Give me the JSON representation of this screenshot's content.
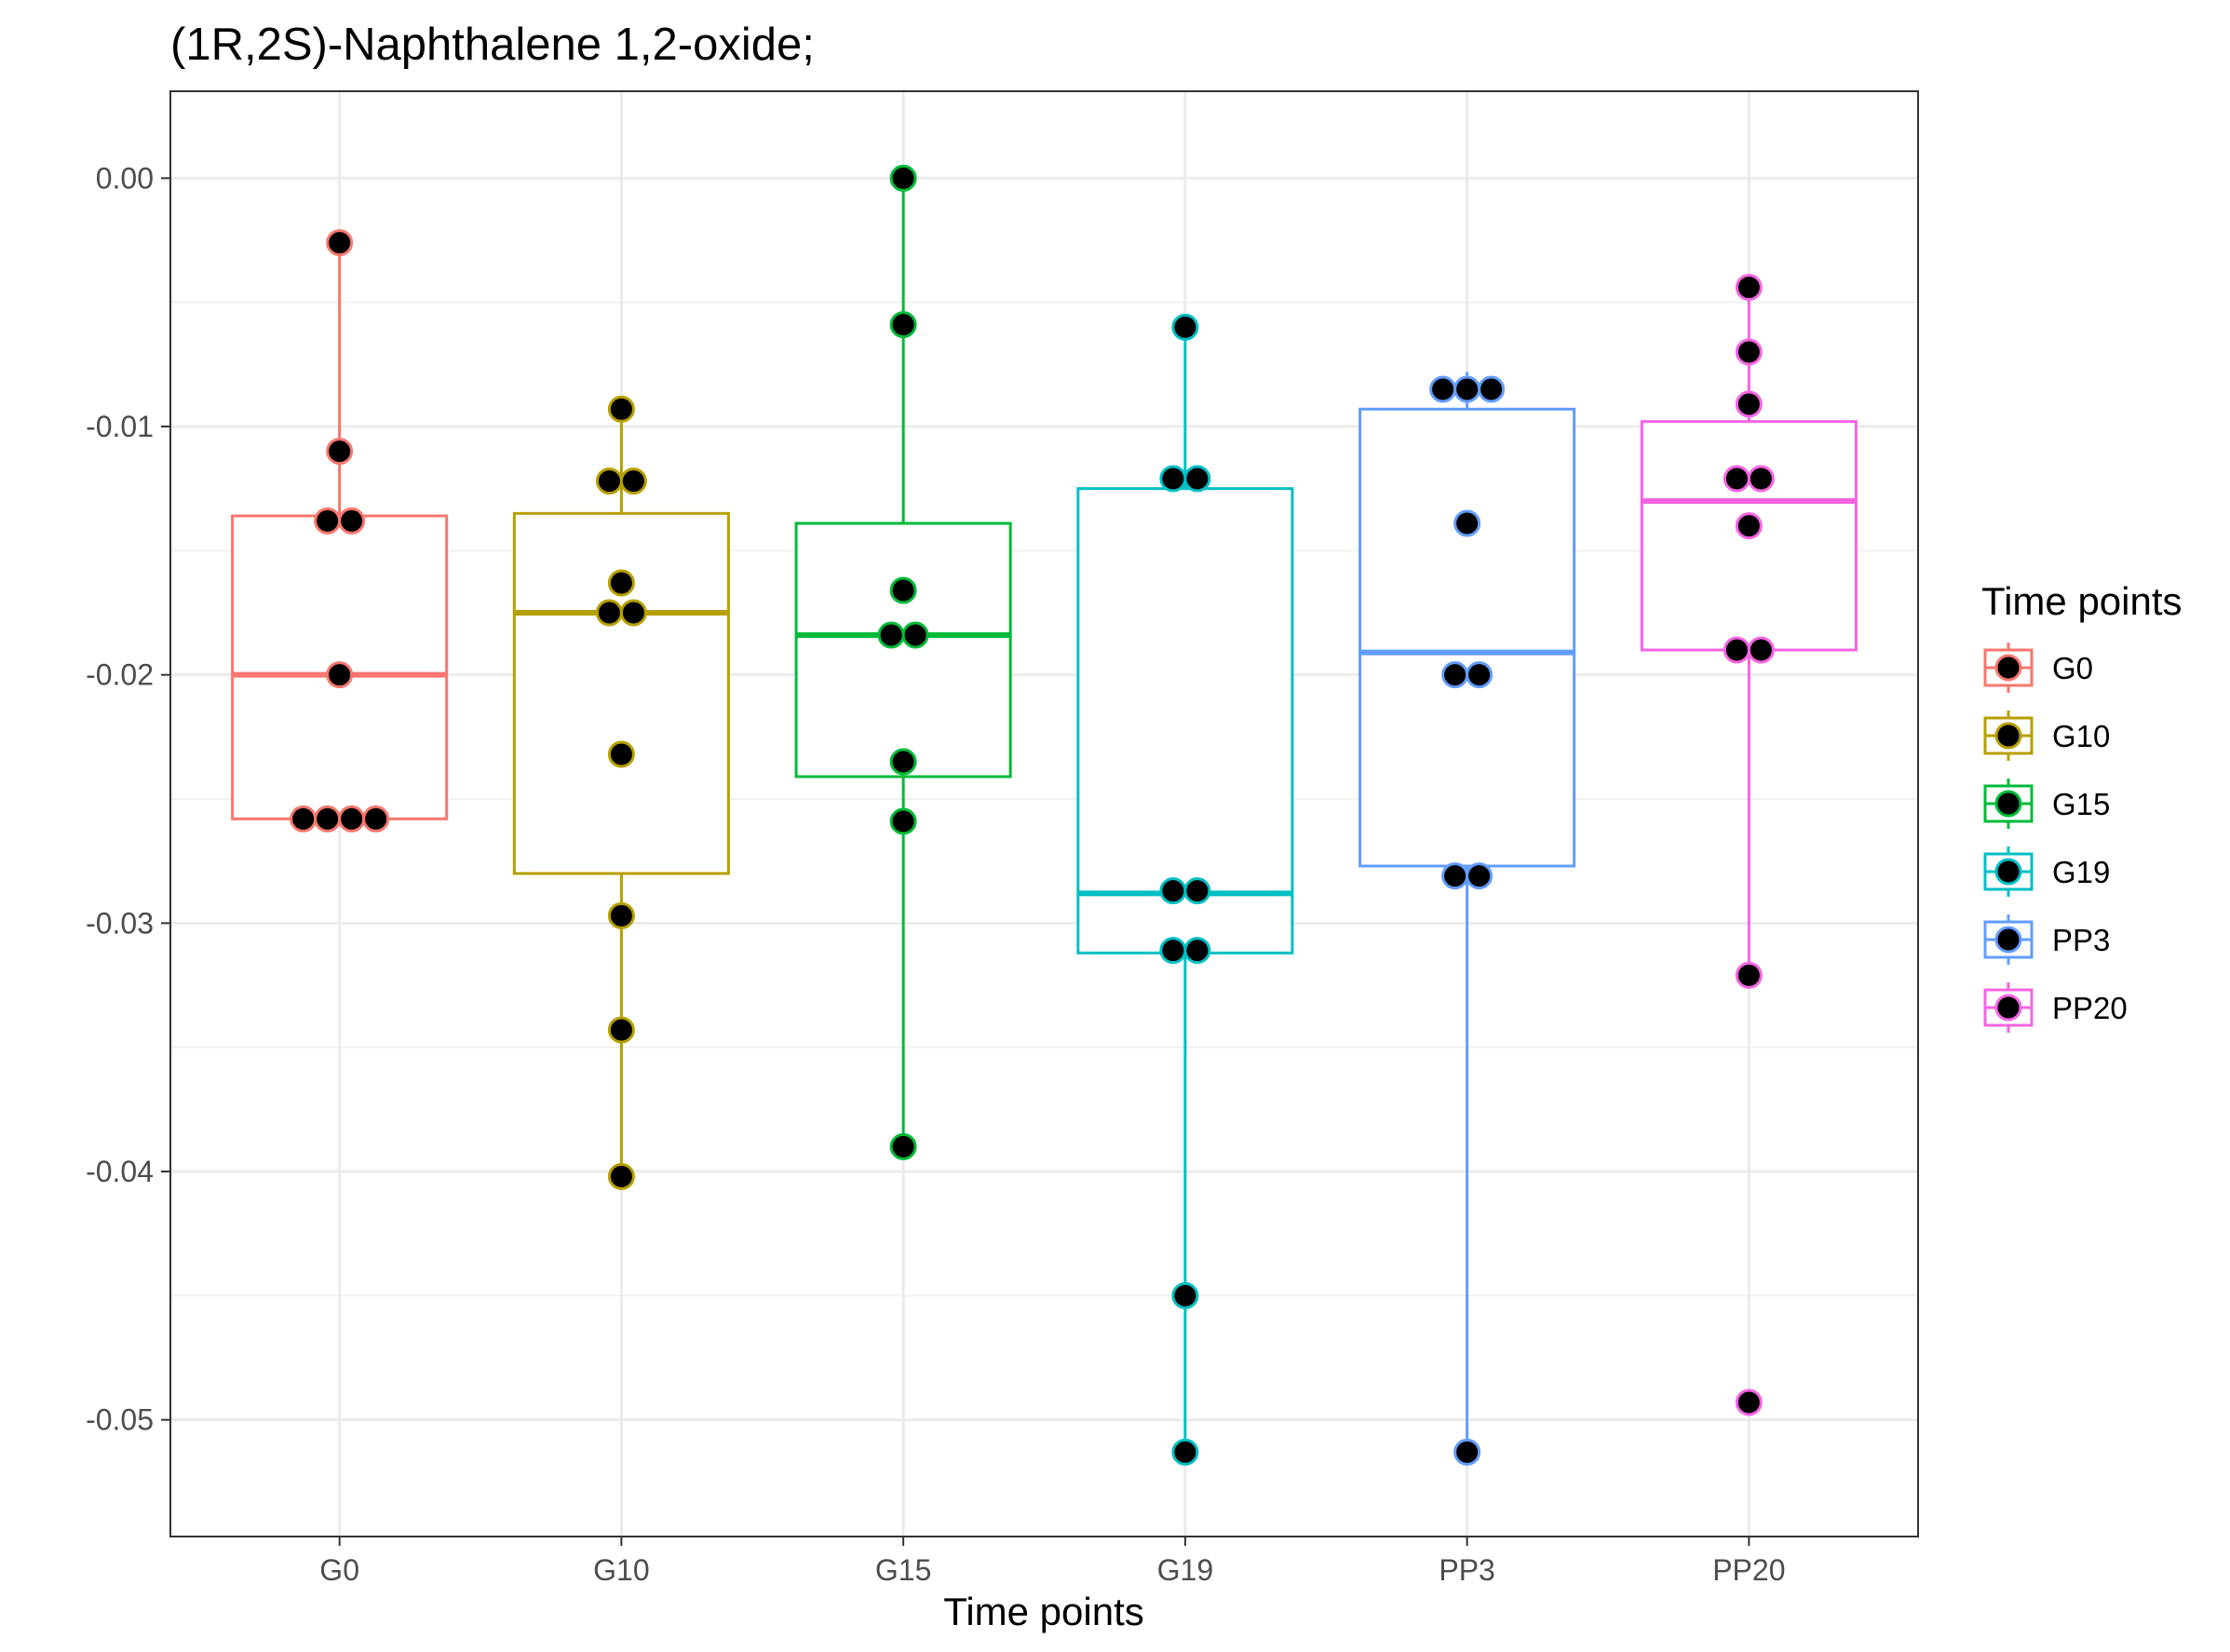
{
  "chart_data": {
    "type": "boxplot",
    "title": "(1R,2S)-Naphthalene 1,2-oxide;",
    "xlabel": "Time points",
    "ylabel": "",
    "categories": [
      "G0",
      "G10",
      "G15",
      "G19",
      "PP3",
      "PP20"
    ],
    "ylim": [
      -0.0547,
      0.0035
    ],
    "yticks": [
      0.0,
      -0.01,
      -0.02,
      -0.03,
      -0.04,
      -0.05
    ],
    "ytick_labels": [
      "0.00",
      "-0.01",
      "-0.02",
      "-0.03",
      "-0.04",
      "-0.05"
    ],
    "grid": true,
    "legend": {
      "title": "Time points",
      "position": "right",
      "entries": [
        "G0",
        "G10",
        "G15",
        "G19",
        "PP3",
        "PP20"
      ]
    },
    "series": [
      {
        "name": "G0",
        "color": "#F8766D",
        "box": {
          "whisker_low": -0.0258,
          "q1": -0.0258,
          "median": -0.02,
          "q3": -0.0136,
          "whisker_high": -0.0026
        },
        "points": [
          {
            "dx": 0,
            "y": -0.0026
          },
          {
            "dx": 0,
            "y": -0.011
          },
          {
            "dx": -0.5,
            "y": -0.0138
          },
          {
            "dx": 0.5,
            "y": -0.0138
          },
          {
            "dx": 0,
            "y": -0.02
          },
          {
            "dx": -1.5,
            "y": -0.0258
          },
          {
            "dx": -0.5,
            "y": -0.0258
          },
          {
            "dx": 0.5,
            "y": -0.0258
          },
          {
            "dx": 1.5,
            "y": -0.0258
          }
        ]
      },
      {
        "name": "G10",
        "color": "#B79F00",
        "box": {
          "whisker_low": -0.0402,
          "q1": -0.028,
          "median": -0.0175,
          "q3": -0.0135,
          "whisker_high": -0.0093
        },
        "points": [
          {
            "dx": 0,
            "y": -0.0093
          },
          {
            "dx": -0.5,
            "y": -0.0122
          },
          {
            "dx": 0.5,
            "y": -0.0122
          },
          {
            "dx": 0,
            "y": -0.0163
          },
          {
            "dx": -0.5,
            "y": -0.0175
          },
          {
            "dx": 0.5,
            "y": -0.0175
          },
          {
            "dx": 0,
            "y": -0.0232
          },
          {
            "dx": 0,
            "y": -0.0297
          },
          {
            "dx": 0,
            "y": -0.0343
          },
          {
            "dx": 0,
            "y": -0.0402
          }
        ]
      },
      {
        "name": "G15",
        "color": "#00BA38",
        "box": {
          "whisker_low": -0.039,
          "q1": -0.0241,
          "median": -0.0184,
          "q3": -0.0139,
          "whisker_high": 0.0
        },
        "points": [
          {
            "dx": 0,
            "y": 0.0
          },
          {
            "dx": 0,
            "y": -0.0059
          },
          {
            "dx": 0,
            "y": -0.0166
          },
          {
            "dx": -0.5,
            "y": -0.0184
          },
          {
            "dx": 0.5,
            "y": -0.0184
          },
          {
            "dx": 0,
            "y": -0.0235
          },
          {
            "dx": 0,
            "y": -0.0259
          },
          {
            "dx": 0,
            "y": -0.039
          }
        ]
      },
      {
        "name": "G19",
        "color": "#00BFC4",
        "box": {
          "whisker_low": -0.0513,
          "q1": -0.0312,
          "median": -0.0288,
          "q3": -0.0125,
          "whisker_high": -0.006
        },
        "points": [
          {
            "dx": 0,
            "y": -0.006
          },
          {
            "dx": -0.5,
            "y": -0.0121
          },
          {
            "dx": 0.5,
            "y": -0.0121
          },
          {
            "dx": -0.5,
            "y": -0.0287
          },
          {
            "dx": 0.5,
            "y": -0.0287
          },
          {
            "dx": -0.5,
            "y": -0.0311
          },
          {
            "dx": 0.5,
            "y": -0.0311
          },
          {
            "dx": 0,
            "y": -0.045
          },
          {
            "dx": 0,
            "y": -0.0513
          }
        ]
      },
      {
        "name": "PP3",
        "color": "#619CFF",
        "box": {
          "whisker_low": -0.0513,
          "q1": -0.0277,
          "median": -0.0191,
          "q3": -0.0093,
          "whisker_high": -0.0078
        },
        "points": [
          {
            "dx": -1,
            "y": -0.0085
          },
          {
            "dx": 0,
            "y": -0.0085
          },
          {
            "dx": 1,
            "y": -0.0085
          },
          {
            "dx": 0,
            "y": -0.0139
          },
          {
            "dx": -0.5,
            "y": -0.02
          },
          {
            "dx": 0.5,
            "y": -0.02
          },
          {
            "dx": -0.5,
            "y": -0.0281
          },
          {
            "dx": 0.5,
            "y": -0.0281
          },
          {
            "dx": 0,
            "y": -0.0513
          }
        ]
      },
      {
        "name": "PP20",
        "color": "#F564E3",
        "box": {
          "whisker_low": -0.0321,
          "q1": -0.019,
          "median": -0.013,
          "q3": -0.0098,
          "whisker_high": -0.0044
        },
        "points": [
          {
            "dx": 0,
            "y": -0.0044
          },
          {
            "dx": 0,
            "y": -0.007
          },
          {
            "dx": 0,
            "y": -0.0091
          },
          {
            "dx": -0.5,
            "y": -0.0121
          },
          {
            "dx": 0.5,
            "y": -0.0121
          },
          {
            "dx": 0,
            "y": -0.014
          },
          {
            "dx": -0.5,
            "y": -0.019
          },
          {
            "dx": 0.5,
            "y": -0.019
          },
          {
            "dx": 0,
            "y": -0.0321
          },
          {
            "dx": 0,
            "y": -0.0493
          }
        ]
      }
    ]
  }
}
